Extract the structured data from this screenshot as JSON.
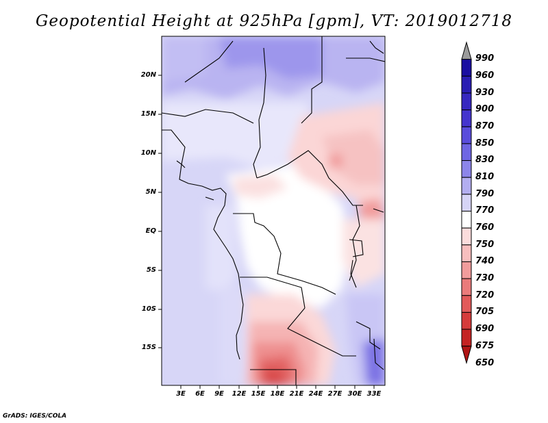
{
  "title": "Geopotential Height at 925hPa [gpm], VT: 2019012718",
  "footer": "GrADS: IGES/COLA",
  "y_ticks": [
    "20N",
    "15N",
    "10N",
    "5N",
    "EQ",
    "5S",
    "10S",
    "15S"
  ],
  "x_ticks": [
    "3E",
    "6E",
    "9E",
    "12E",
    "15E",
    "18E",
    "21E",
    "24E",
    "27E",
    "30E",
    "33E"
  ],
  "colorbar": {
    "levels": [
      "990",
      "960",
      "930",
      "900",
      "870",
      "850",
      "830",
      "810",
      "790",
      "770",
      "760",
      "750",
      "740",
      "730",
      "720",
      "705",
      "690",
      "675",
      "650"
    ],
    "colors": [
      "#9b9b9b",
      "#1a0ea1",
      "#2a1db3",
      "#3727c0",
      "#4535ce",
      "#5a4ddc",
      "#6f66e3",
      "#8c85ea",
      "#b3aef0",
      "#d6d4f6",
      "#ffffff",
      "#fbdcdc",
      "#f7bebe",
      "#f19c9c",
      "#ea7b7b",
      "#e25a5a",
      "#d53b3b",
      "#c52323",
      "#b01515"
    ]
  }
}
